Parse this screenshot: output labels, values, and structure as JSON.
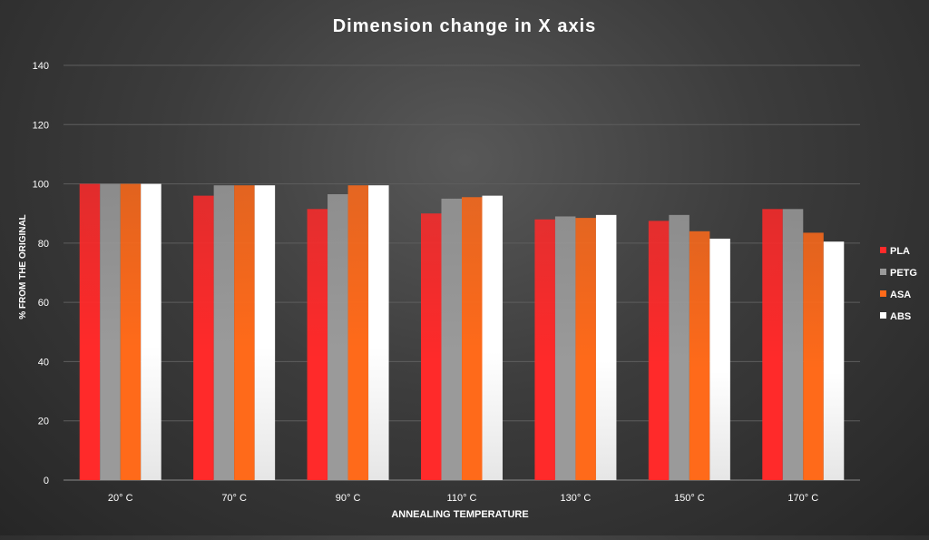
{
  "chart_data": {
    "type": "bar",
    "title": "Dimension change in X axis",
    "xlabel": "ANNEALING TEMPERATURE",
    "ylabel": "% FROM THE ORIGINAL",
    "ylim": [
      0,
      140
    ],
    "yticks": [
      0,
      20,
      40,
      60,
      80,
      100,
      120,
      140
    ],
    "grid": true,
    "legend_position": "right",
    "categories": [
      "20° C",
      "70° C",
      "90° C",
      "110° C",
      "130° C",
      "150° C",
      "170° C"
    ],
    "series": [
      {
        "name": "PLA",
        "color": "#ff2a2a",
        "values": [
          100,
          96,
          91.5,
          90,
          88,
          87.5,
          91.5
        ]
      },
      {
        "name": "PETG",
        "color": "#9a9a9a",
        "values": [
          100,
          99.5,
          96.5,
          95,
          89,
          89.5,
          91.5
        ]
      },
      {
        "name": "ASA",
        "color": "#ff6a1a",
        "values": [
          100,
          99.5,
          99.5,
          95.5,
          88.5,
          84,
          83.5
        ]
      },
      {
        "name": "ABS",
        "color": "#ffffff",
        "values": [
          100,
          99.5,
          99.5,
          96,
          89.5,
          81.5,
          80.5
        ]
      }
    ]
  }
}
